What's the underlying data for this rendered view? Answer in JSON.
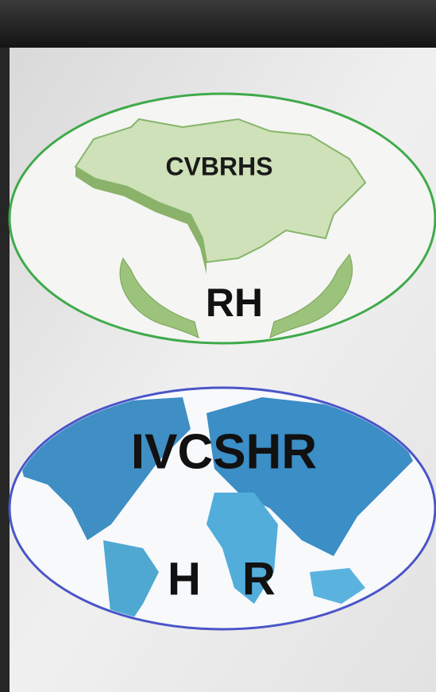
{
  "logos": [
    {
      "name": "CVBRHS",
      "subtitle": "RH"
    },
    {
      "name": "IVCSHR",
      "subtitle_left": "H",
      "subtitle_right": "R"
    }
  ]
}
